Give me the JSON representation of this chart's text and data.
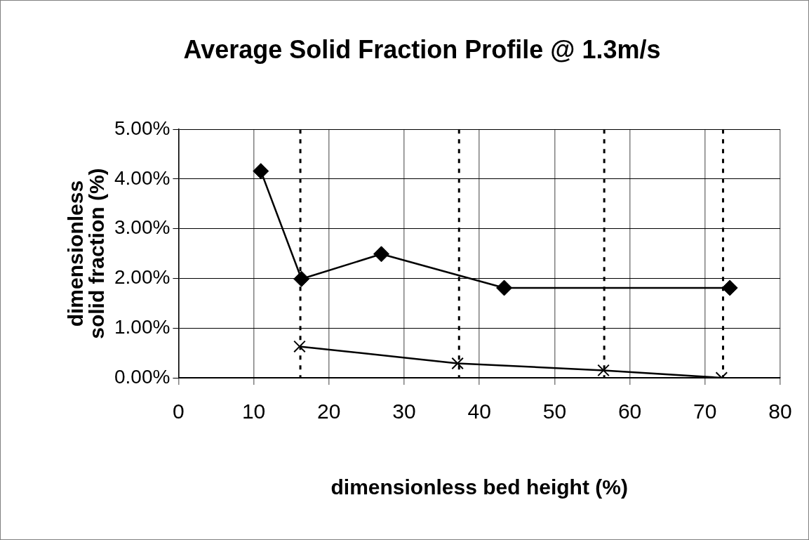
{
  "chart_data": {
    "type": "line",
    "title": "Average Solid Fraction Profile @ 1.3m/s",
    "xlabel": "dimensionless bed height (%)",
    "ylabel": "dimensionless solid fraction (%)",
    "series": [
      {
        "color": "#000000",
        "marker": "diamond",
        "x": [
          10.95,
          16.35,
          26.97,
          43.3,
          73.3
        ],
        "values": [
          4.16,
          1.99,
          2.49,
          1.81,
          1.81
        ]
      },
      {
        "color": "#000000",
        "marker": "cross",
        "x": [
          16.1,
          37.1,
          56.5,
          72.2
        ],
        "values": [
          0.63,
          0.29,
          0.15,
          0
        ]
      }
    ],
    "xlim": [
      0,
      80
    ],
    "xticks": [
      0,
      10,
      20,
      30,
      40,
      50,
      60,
      70,
      80
    ],
    "ylim": [
      0,
      5
    ],
    "yticks": [
      {
        "value": 0,
        "label": "0.00%"
      },
      {
        "value": 1,
        "label": "1.00%"
      },
      {
        "value": 2,
        "label": "2.00%"
      },
      {
        "value": 3,
        "label": "3.00%"
      },
      {
        "value": 4,
        "label": "4.00%"
      },
      {
        "value": 5,
        "label": "5.00%"
      }
    ],
    "ref_lines": [
      {
        "axis": "x",
        "value": 16.2,
        "line_style": "dashed"
      },
      {
        "axis": "x",
        "value": 37.3,
        "line_style": "dashed"
      },
      {
        "axis": "x",
        "value": 56.6,
        "line_style": "dashed"
      },
      {
        "axis": "x",
        "value": 72.4,
        "line_style": "dashed"
      }
    ],
    "grid": true,
    "legend": false
  }
}
